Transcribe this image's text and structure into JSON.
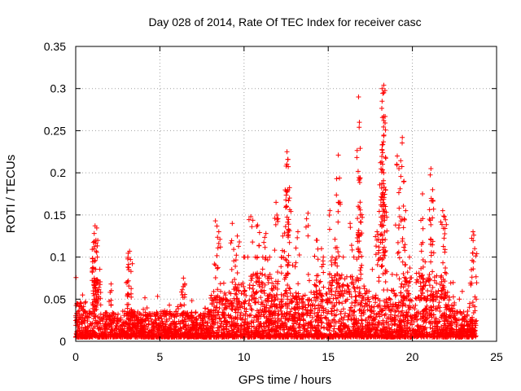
{
  "chart_data": {
    "type": "scatter",
    "title": "Day 028 of 2014, Rate Of TEC Index for receiver casc",
    "xlabel": "GPS time / hours",
    "ylabel": "ROTI / TECUs",
    "xlim": [
      0,
      25
    ],
    "ylim": [
      0,
      0.35
    ],
    "xticks": [
      0,
      5,
      10,
      15,
      20,
      25
    ],
    "xtick_labels": [
      "0",
      "5",
      "10",
      "15",
      "20",
      "25"
    ],
    "yticks": [
      0,
      0.05,
      0.1,
      0.15,
      0.2,
      0.25,
      0.3,
      0.35
    ],
    "ytick_labels": [
      "0",
      "0.05",
      "0.1",
      "0.15",
      "0.2",
      "0.25",
      "0.3",
      "0.35"
    ],
    "grid": true,
    "marker": "+",
    "color": "#ff0000",
    "series": [
      {
        "name": "ROTI",
        "x_range": [
          0,
          23.8
        ],
        "typical_range": [
          0.005,
          0.06
        ],
        "notable_points": [
          {
            "x": 1.15,
            "y": 0.137
          },
          {
            "x": 1.1,
            "y": 0.128
          },
          {
            "x": 1.2,
            "y": 0.12
          },
          {
            "x": 1.1,
            "y": 0.095
          },
          {
            "x": 2.1,
            "y": 0.068
          },
          {
            "x": 3.2,
            "y": 0.107
          },
          {
            "x": 3.25,
            "y": 0.097
          },
          {
            "x": 3.1,
            "y": 0.088
          },
          {
            "x": 6.4,
            "y": 0.075
          },
          {
            "x": 8.3,
            "y": 0.143
          },
          {
            "x": 8.5,
            "y": 0.13
          },
          {
            "x": 9.3,
            "y": 0.14
          },
          {
            "x": 9.6,
            "y": 0.125
          },
          {
            "x": 10.4,
            "y": 0.148
          },
          {
            "x": 10.8,
            "y": 0.138
          },
          {
            "x": 11.3,
            "y": 0.128
          },
          {
            "x": 11.9,
            "y": 0.165
          },
          {
            "x": 12.3,
            "y": 0.125
          },
          {
            "x": 12.5,
            "y": 0.208
          },
          {
            "x": 12.55,
            "y": 0.225
          },
          {
            "x": 12.6,
            "y": 0.216
          },
          {
            "x": 12.6,
            "y": 0.18
          },
          {
            "x": 12.7,
            "y": 0.17
          },
          {
            "x": 13.2,
            "y": 0.13
          },
          {
            "x": 13.8,
            "y": 0.152
          },
          {
            "x": 14.3,
            "y": 0.12
          },
          {
            "x": 14.6,
            "y": 0.11
          },
          {
            "x": 15.1,
            "y": 0.155
          },
          {
            "x": 15.5,
            "y": 0.193
          },
          {
            "x": 15.6,
            "y": 0.221
          },
          {
            "x": 15.6,
            "y": 0.165
          },
          {
            "x": 16.3,
            "y": 0.14
          },
          {
            "x": 16.8,
            "y": 0.29
          },
          {
            "x": 16.85,
            "y": 0.26
          },
          {
            "x": 16.9,
            "y": 0.229
          },
          {
            "x": 16.9,
            "y": 0.194
          },
          {
            "x": 16.9,
            "y": 0.15
          },
          {
            "x": 17.9,
            "y": 0.13
          },
          {
            "x": 18.2,
            "y": 0.3
          },
          {
            "x": 18.3,
            "y": 0.304
          },
          {
            "x": 18.3,
            "y": 0.295
          },
          {
            "x": 18.2,
            "y": 0.285
          },
          {
            "x": 18.3,
            "y": 0.267
          },
          {
            "x": 18.3,
            "y": 0.262
          },
          {
            "x": 18.2,
            "y": 0.227
          },
          {
            "x": 18.1,
            "y": 0.212
          },
          {
            "x": 18.3,
            "y": 0.2
          },
          {
            "x": 18.4,
            "y": 0.18
          },
          {
            "x": 18.4,
            "y": 0.16
          },
          {
            "x": 19.1,
            "y": 0.22
          },
          {
            "x": 19.2,
            "y": 0.205
          },
          {
            "x": 19.4,
            "y": 0.242
          },
          {
            "x": 19.5,
            "y": 0.19
          },
          {
            "x": 19.6,
            "y": 0.155
          },
          {
            "x": 20.6,
            "y": 0.175
          },
          {
            "x": 21.1,
            "y": 0.205
          },
          {
            "x": 21.2,
            "y": 0.18
          },
          {
            "x": 21.8,
            "y": 0.155
          },
          {
            "x": 21.9,
            "y": 0.148
          },
          {
            "x": 23.6,
            "y": 0.13
          },
          {
            "x": 23.7,
            "y": 0.11
          },
          {
            "x": 23.5,
            "y": 0.085
          }
        ]
      }
    ]
  }
}
